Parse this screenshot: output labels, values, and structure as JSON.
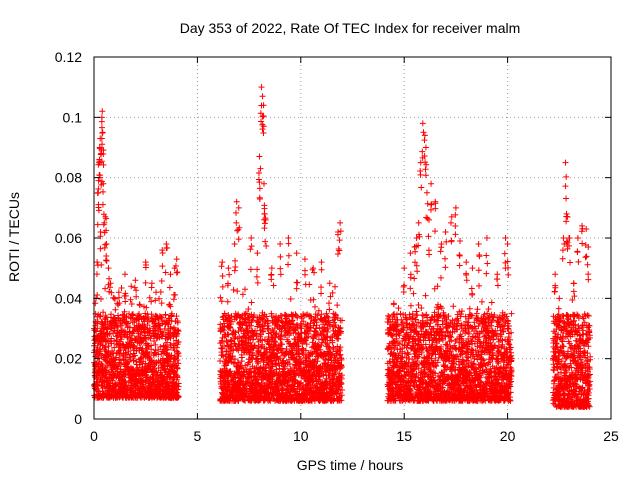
{
  "chart_data": {
    "type": "scatter",
    "title": "Day 353 of 2022, Rate Of TEC Index for receiver malm",
    "xlabel": "GPS time / hours",
    "ylabel": "ROTI / TECUs",
    "xlim": [
      0,
      25
    ],
    "ylim": [
      0,
      0.12
    ],
    "xticks": [
      0,
      5,
      10,
      15,
      20,
      25
    ],
    "yticks": [
      0,
      0.02,
      0.04,
      0.06,
      0.08,
      0.1,
      0.12
    ],
    "grid": true,
    "marker": "+",
    "color": "#ff0000",
    "series": [
      {
        "points": [
          [
            0.05,
            0.018
          ],
          [
            0.1,
            0.04
          ],
          [
            0.15,
            0.052
          ],
          [
            0.2,
            0.075
          ],
          [
            0.22,
            0.079
          ],
          [
            0.25,
            0.085
          ],
          [
            0.28,
            0.09
          ],
          [
            0.3,
            0.093
          ],
          [
            0.32,
            0.062
          ],
          [
            0.35,
            0.088
          ],
          [
            0.38,
            0.1
          ],
          [
            0.4,
            0.102
          ],
          [
            0.42,
            0.095
          ],
          [
            0.45,
            0.078
          ],
          [
            0.5,
            0.065
          ],
          [
            0.55,
            0.067
          ],
          [
            0.6,
            0.058
          ],
          [
            0.7,
            0.05
          ],
          [
            0.8,
            0.045
          ],
          [
            1.0,
            0.04
          ],
          [
            1.2,
            0.042
          ],
          [
            1.5,
            0.048
          ],
          [
            1.8,
            0.044
          ],
          [
            2.0,
            0.046
          ],
          [
            2.2,
            0.038
          ],
          [
            2.5,
            0.052
          ],
          [
            2.8,
            0.045
          ],
          [
            3.0,
            0.042
          ],
          [
            3.3,
            0.056
          ],
          [
            3.5,
            0.058
          ],
          [
            3.7,
            0.048
          ],
          [
            3.9,
            0.05
          ],
          [
            4.0,
            0.053
          ],
          [
            6.2,
            0.052
          ],
          [
            6.5,
            0.05
          ],
          [
            6.8,
            0.058
          ],
          [
            6.9,
            0.072
          ],
          [
            7.0,
            0.07
          ],
          [
            7.3,
            0.043
          ],
          [
            7.6,
            0.06
          ],
          [
            7.9,
            0.055
          ],
          [
            8.0,
            0.087
          ],
          [
            8.05,
            0.083
          ],
          [
            8.1,
            0.11
          ],
          [
            8.15,
            0.107
          ],
          [
            8.2,
            0.104
          ],
          [
            8.22,
            0.078
          ],
          [
            8.25,
            0.068
          ],
          [
            8.3,
            0.066
          ],
          [
            8.6,
            0.05
          ],
          [
            9.0,
            0.058
          ],
          [
            9.4,
            0.06
          ],
          [
            9.8,
            0.055
          ],
          [
            10.2,
            0.053
          ],
          [
            10.6,
            0.05
          ],
          [
            11.0,
            0.052
          ],
          [
            11.4,
            0.045
          ],
          [
            11.8,
            0.062
          ],
          [
            11.9,
            0.065
          ],
          [
            14.3,
            0.025
          ],
          [
            14.5,
            0.038
          ],
          [
            15.0,
            0.05
          ],
          [
            15.3,
            0.055
          ],
          [
            15.5,
            0.057
          ],
          [
            15.6,
            0.06
          ],
          [
            15.7,
            0.065
          ],
          [
            15.8,
            0.085
          ],
          [
            15.9,
            0.098
          ],
          [
            16.0,
            0.094
          ],
          [
            16.05,
            0.09
          ],
          [
            16.1,
            0.075
          ],
          [
            16.2,
            0.066
          ],
          [
            16.3,
            0.078
          ],
          [
            16.5,
            0.072
          ],
          [
            16.8,
            0.058
          ],
          [
            17.0,
            0.062
          ],
          [
            17.3,
            0.067
          ],
          [
            17.5,
            0.07
          ],
          [
            17.7,
            0.059
          ],
          [
            18.0,
            0.052
          ],
          [
            18.3,
            0.05
          ],
          [
            18.6,
            0.058
          ],
          [
            19.0,
            0.06
          ],
          [
            19.5,
            0.048
          ],
          [
            19.9,
            0.06
          ],
          [
            20.0,
            0.058
          ],
          [
            22.3,
            0.048
          ],
          [
            22.5,
            0.04
          ],
          [
            22.7,
            0.06
          ],
          [
            22.8,
            0.085
          ],
          [
            22.85,
            0.068
          ],
          [
            22.9,
            0.067
          ],
          [
            23.0,
            0.06
          ],
          [
            23.2,
            0.045
          ],
          [
            23.4,
            0.06
          ],
          [
            23.6,
            0.064
          ],
          [
            23.8,
            0.063
          ],
          [
            23.9,
            0.057
          ]
        ],
        "baseline_segments": [
          {
            "x_start": 0.0,
            "x_end": 4.1,
            "typical_low": 0.007,
            "typical_high": 0.035
          },
          {
            "x_start": 6.1,
            "x_end": 12.0,
            "typical_low": 0.006,
            "typical_high": 0.035
          },
          {
            "x_start": 14.2,
            "x_end": 20.2,
            "typical_low": 0.006,
            "typical_high": 0.035
          },
          {
            "x_start": 22.2,
            "x_end": 24.0,
            "typical_low": 0.004,
            "typical_high": 0.035
          }
        ]
      }
    ]
  }
}
